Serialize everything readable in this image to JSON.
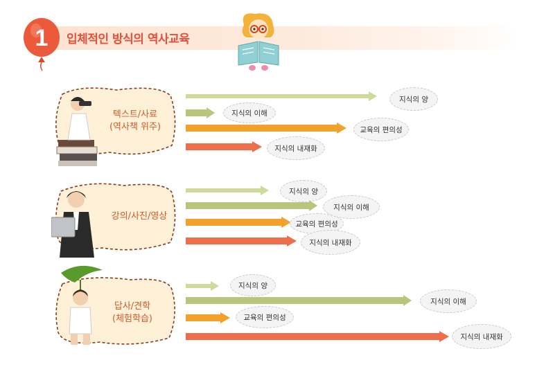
{
  "header": {
    "number": "1",
    "title": "입체적인 방식의 역사교육"
  },
  "groups": [
    {
      "label_line1": "텍스트/사료",
      "label_line2": "(역사책 위주)",
      "rows": [
        {
          "text": "지식의 양",
          "color": "#ccdb9a"
        },
        {
          "text": "지식의 이해",
          "color": "#b7c67a"
        },
        {
          "text": "교육의 편의성",
          "color": "#f2a22a"
        },
        {
          "text": "지식의 내재화",
          "color": "#ee6e4c"
        }
      ]
    },
    {
      "label_line1": "강의/사진/영상",
      "rows": [
        {
          "text": "지식의 양",
          "color": "#ccdb9a"
        },
        {
          "text": "지식의 이해",
          "color": "#b7c67a"
        },
        {
          "text": "교육의 편의성",
          "color": "#f2a22a"
        },
        {
          "text": "지식의 내재화",
          "color": "#ee6e4c"
        }
      ]
    },
    {
      "label_line1": "답사/견학",
      "label_line2": "(체험학습)",
      "rows": [
        {
          "text": "지식의 양",
          "color": "#ccdb9a"
        },
        {
          "text": "지식의 이해",
          "color": "#b7c67a"
        },
        {
          "text": "교육의 편의성",
          "color": "#f2a22a"
        },
        {
          "text": "지식의 내재화",
          "color": "#ee6e4c"
        }
      ]
    }
  ]
}
